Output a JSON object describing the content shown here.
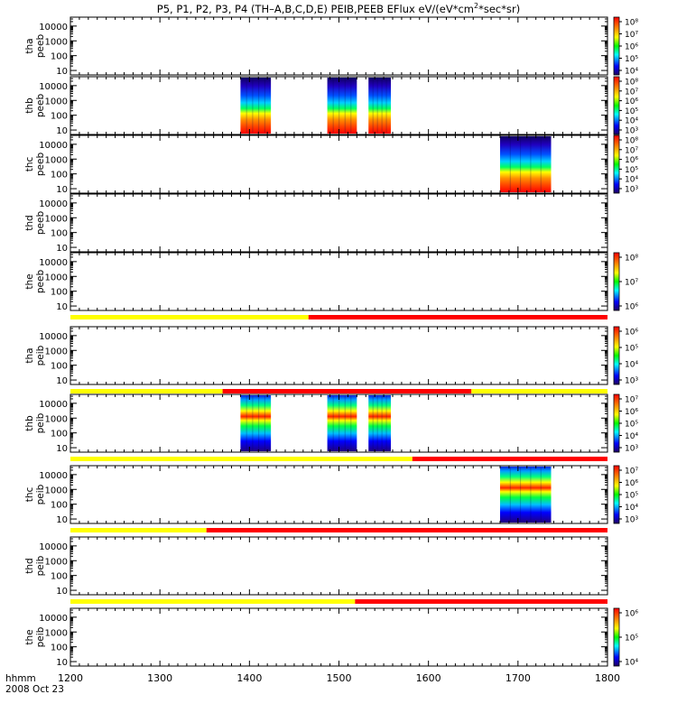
{
  "chart_data": {
    "type": "heatmap",
    "title_html": "P5, P1, P2, P3, P4 (TH-A,B,C,D,E) PEIB,PEEB EFlux eV/(eV*cm<sup>2</sup>*sec*sr)",
    "title_parts": [
      "P5, P1, P2, P3, P4 (TH–A,B,C,D,E) PEIB,PEEB EFlux eV/(eV*cm",
      "2",
      "*sec*sr)"
    ],
    "x_axis": {
      "ticks": [
        "1200",
        "1300",
        "1400",
        "1500",
        "1600",
        "1700",
        "1800"
      ],
      "range": [
        1200,
        1800
      ],
      "corner_label": "hhmm",
      "date_label": "2008 Oct 23"
    },
    "y_ticks": [
      "10000",
      "1000",
      "100",
      "10"
    ],
    "y_scale": "log",
    "y_range": [
      5,
      40000
    ],
    "colors": {
      "high": "#ff0000",
      "orange": "#ff8000",
      "yellow": "#ffff00",
      "green": "#00ff00",
      "cyan": "#00ffff",
      "blue": "#0000ff",
      "low": "#200060",
      "bar_yellow": "#ffff00",
      "bar_red": "#ff0000"
    },
    "panels": [
      {
        "id": "tha-peeb",
        "ylabel": [
          "tha",
          "peeb"
        ],
        "colorbar": [
          "10⁸",
          "10⁷",
          "10⁶",
          "10⁵",
          "10⁴"
        ],
        "colorbar_exponents": [
          8,
          7,
          6,
          5,
          4
        ],
        "data_intervals": []
      },
      {
        "id": "thb-peeb",
        "ylabel": [
          "thb",
          "peeb"
        ],
        "colorbar": [
          "10⁸",
          "10⁷",
          "10⁶",
          "10⁵",
          "10⁴",
          "10³"
        ],
        "colorbar_exponents": [
          8,
          7,
          6,
          5,
          4,
          3
        ],
        "data_intervals": [
          [
            1390,
            1424
          ],
          [
            1487,
            1520
          ],
          [
            1533,
            1558
          ]
        ],
        "band_profile": "electron"
      },
      {
        "id": "thc-peeb",
        "ylabel": [
          "thc",
          "peeb"
        ],
        "colorbar": [
          "10⁸",
          "10⁷",
          "10⁶",
          "10⁵",
          "10⁴",
          "10³"
        ],
        "colorbar_exponents": [
          8,
          7,
          6,
          5,
          4,
          3
        ],
        "data_intervals": [
          [
            1680,
            1737
          ]
        ],
        "band_profile": "electron"
      },
      {
        "id": "thd-peeb",
        "ylabel": [
          "thd",
          "peeb"
        ],
        "colorbar": [],
        "colorbar_exponents": [],
        "data_intervals": []
      },
      {
        "id": "the-peeb",
        "ylabel": [
          "the",
          "peeb"
        ],
        "colorbar": [
          "10⁸",
          "10⁷",
          "10⁶"
        ],
        "colorbar_exponents": [
          8,
          7,
          6
        ],
        "data_intervals": [],
        "mode_bar": [
          [
            "yellow",
            1200,
            1466
          ],
          [
            "red",
            1466,
            1800
          ]
        ]
      },
      {
        "id": "tha-peib",
        "ylabel": [
          "tha",
          "peib"
        ],
        "colorbar": [
          "10⁶",
          "10⁵",
          "10⁴",
          "10³"
        ],
        "colorbar_exponents": [
          6,
          5,
          4,
          3
        ],
        "data_intervals": [],
        "mode_bar": [
          [
            "yellow",
            1200,
            1370
          ],
          [
            "red",
            1370,
            1648
          ],
          [
            "yellow",
            1648,
            1800
          ]
        ]
      },
      {
        "id": "thb-peib",
        "ylabel": [
          "thb",
          "peib"
        ],
        "colorbar": [
          "10⁷",
          "10⁶",
          "10⁵",
          "10⁴",
          "10³"
        ],
        "colorbar_exponents": [
          7,
          6,
          5,
          4,
          3
        ],
        "data_intervals": [
          [
            1390,
            1424
          ],
          [
            1487,
            1520
          ],
          [
            1533,
            1558
          ]
        ],
        "band_profile": "ion",
        "mode_bar": [
          [
            "yellow",
            1200,
            1582
          ],
          [
            "red",
            1582,
            1800
          ]
        ]
      },
      {
        "id": "thc-peib",
        "ylabel": [
          "thc",
          "peib"
        ],
        "colorbar": [
          "10⁷",
          "10⁶",
          "10⁵",
          "10⁴",
          "10³"
        ],
        "colorbar_exponents": [
          7,
          6,
          5,
          4,
          3
        ],
        "data_intervals": [
          [
            1680,
            1737
          ]
        ],
        "band_profile": "ion",
        "mode_bar": [
          [
            "yellow",
            1200,
            1352
          ],
          [
            "red",
            1352,
            1800
          ]
        ]
      },
      {
        "id": "thd-peib",
        "ylabel": [
          "thd",
          "peib"
        ],
        "colorbar": [],
        "colorbar_exponents": [],
        "data_intervals": [],
        "mode_bar": [
          [
            "yellow",
            1200,
            1518
          ],
          [
            "red",
            1518,
            1800
          ]
        ]
      },
      {
        "id": "the-peib",
        "ylabel": [
          "the",
          "peib"
        ],
        "colorbar": [
          "10⁶",
          "10⁵",
          "10⁴"
        ],
        "colorbar_exponents": [
          6,
          5,
          4
        ],
        "data_intervals": []
      }
    ]
  }
}
